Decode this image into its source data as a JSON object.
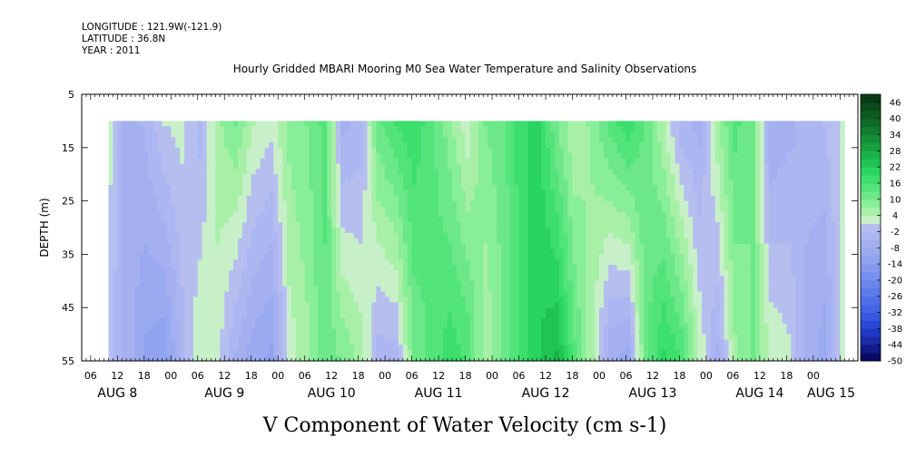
{
  "header": {
    "longitude": "LONGITUDE : 121.9W(-121.9)",
    "latitude": "LATITUDE : 36.8N",
    "year": "YEAR : 2011"
  },
  "chart_data": {
    "type": "heatmap",
    "title": "Hourly Gridded MBARI Mooring M0 Sea Water Temperature and Salinity Observations",
    "xlabel": "V Component of Water Velocity (cm s-1)",
    "ylabel": "DEPTH (m)",
    "ylim": [
      5,
      55
    ],
    "y_inverted": true,
    "data_depth_range": [
      10,
      55
    ],
    "x_range_hours": [
      -20,
      154
    ],
    "data_start_hour": -14,
    "data_end_hour": 151,
    "y_ticks": [
      5,
      15,
      25,
      35,
      45,
      55
    ],
    "x_hour_ticks": [
      {
        "h": -18,
        "label": "06"
      },
      {
        "h": -12,
        "label": "12"
      },
      {
        "h": -6,
        "label": "18"
      },
      {
        "h": 0,
        "label": "00"
      },
      {
        "h": 6,
        "label": "06"
      },
      {
        "h": 12,
        "label": "12"
      },
      {
        "h": 18,
        "label": "18"
      },
      {
        "h": 24,
        "label": "00"
      },
      {
        "h": 30,
        "label": "06"
      },
      {
        "h": 36,
        "label": "12"
      },
      {
        "h": 42,
        "label": "18"
      },
      {
        "h": 48,
        "label": "00"
      },
      {
        "h": 54,
        "label": "06"
      },
      {
        "h": 60,
        "label": "12"
      },
      {
        "h": 66,
        "label": "18"
      },
      {
        "h": 72,
        "label": "00"
      },
      {
        "h": 78,
        "label": "06"
      },
      {
        "h": 84,
        "label": "12"
      },
      {
        "h": 90,
        "label": "18"
      },
      {
        "h": 96,
        "label": "00"
      },
      {
        "h": 102,
        "label": "06"
      },
      {
        "h": 108,
        "label": "12"
      },
      {
        "h": 114,
        "label": "18"
      },
      {
        "h": 120,
        "label": "00"
      },
      {
        "h": 126,
        "label": "06"
      },
      {
        "h": 132,
        "label": "12"
      },
      {
        "h": 138,
        "label": "18"
      },
      {
        "h": 144,
        "label": "00"
      }
    ],
    "date_labels": [
      {
        "h": -12,
        "label": "AUG  8"
      },
      {
        "h": 12,
        "label": "AUG  9"
      },
      {
        "h": 36,
        "label": "AUG 10"
      },
      {
        "h": 60,
        "label": "AUG 11"
      },
      {
        "h": 84,
        "label": "AUG 12"
      },
      {
        "h": 108,
        "label": "AUG 13"
      },
      {
        "h": 132,
        "label": "AUG 14"
      },
      {
        "h": 148,
        "label": "AUG 15"
      }
    ],
    "colorbar": {
      "levels": [
        -50,
        -47,
        -44,
        -41,
        -38,
        -35,
        -32,
        -29,
        -26,
        -23,
        -20,
        -17,
        -14,
        -11,
        -8,
        -5,
        -2,
        1,
        4,
        7,
        10,
        13,
        16,
        19,
        22,
        25,
        28,
        31,
        34,
        37,
        40,
        43,
        46,
        49
      ],
      "labels": [
        46,
        40,
        34,
        28,
        22,
        16,
        10,
        4,
        -2,
        -8,
        -14,
        -20,
        -26,
        -32,
        -38,
        -44,
        -50
      ],
      "colors": [
        "#0a0a66",
        "#111a88",
        "#1a2aa8",
        "#2038c4",
        "#2a48d6",
        "#3658e0",
        "#4466e6",
        "#5070e8",
        "#5e7cea",
        "#6a86ec",
        "#7890ee",
        "#8498ef",
        "#90a2f0",
        "#9aaaf0",
        "#a4b0f0",
        "#acb6f0",
        "#b6bef0",
        "#c8f0c8",
        "#a8f0a8",
        "#88ee98",
        "#6ce888",
        "#52e47a",
        "#3cde6c",
        "#2ad460",
        "#20c454",
        "#1cb24a",
        "#18a040",
        "#158e38",
        "#127c30",
        "#0f6a28",
        "#0c5a22",
        "#0a4a1c",
        "#083c16"
      ]
    },
    "profile_hours": [
      -14,
      -10,
      -6,
      -2,
      2,
      6,
      10,
      14,
      18,
      22,
      26,
      30,
      34,
      38,
      42,
      46,
      50,
      54,
      58,
      62,
      66,
      70,
      74,
      78,
      82,
      86,
      90,
      94,
      98,
      102,
      106,
      110,
      114,
      118,
      122,
      126,
      130,
      134,
      138,
      142,
      146,
      151
    ],
    "velocity_top": [
      2,
      -8,
      -4,
      1,
      2,
      -3,
      6,
      10,
      4,
      2,
      8,
      10,
      14,
      -6,
      -4,
      12,
      16,
      18,
      14,
      8,
      2,
      10,
      12,
      18,
      20,
      10,
      4,
      8,
      14,
      18,
      12,
      4,
      -4,
      -6,
      6,
      14,
      10,
      -8,
      -6,
      -4,
      -2,
      2
    ],
    "velocity_bottom": [
      -2,
      -6,
      -12,
      -14,
      -4,
      4,
      2,
      -6,
      -10,
      -12,
      2,
      6,
      12,
      10,
      6,
      -4,
      -4,
      10,
      14,
      18,
      16,
      4,
      10,
      16,
      22,
      26,
      14,
      4,
      -8,
      -10,
      12,
      20,
      16,
      4,
      -6,
      6,
      10,
      4,
      2,
      -6,
      -10,
      4
    ]
  }
}
